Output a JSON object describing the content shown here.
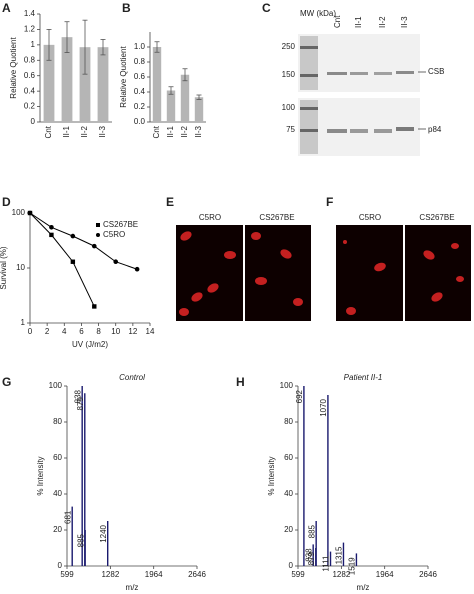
{
  "panel_labels": [
    "A",
    "B",
    "C",
    "D",
    "E",
    "F",
    "G",
    "H"
  ],
  "chart_data": [
    {
      "type": "bar",
      "ylabel": "Relative Quotient",
      "categories": [
        "Cnt",
        "II-1",
        "II-2",
        "II-3"
      ],
      "values": [
        1.0,
        1.1,
        0.97,
        0.97
      ],
      "errors": [
        0.2,
        0.2,
        0.35,
        0.1
      ],
      "color": "#b5b5b5",
      "ylim": [
        0,
        1.4
      ],
      "yticks": [
        0,
        0.2,
        0.4,
        0.6,
        0.8,
        1,
        1.2,
        1.4
      ]
    },
    {
      "type": "bar",
      "ylabel": "Relative Quotient",
      "categories": [
        "Cnt",
        "II-1",
        "II-2",
        "II-3"
      ],
      "values": [
        1.0,
        0.42,
        0.63,
        0.33
      ],
      "errors": [
        0.07,
        0.05,
        0.08,
        0.03
      ],
      "color": "#b5b5b5",
      "ylim": [
        0,
        1.2
      ],
      "yticks": [
        {
          "value": 0,
          "label": "0.0"
        },
        0.2,
        0.4,
        0.6,
        0.8,
        {
          "value": 1,
          "label": "1.0"
        }
      ]
    },
    {
      "type": "line",
      "xlabel": "UV (J/m2)",
      "ylabel": "Survival (%)",
      "x": [
        0,
        2.5,
        5,
        7.5,
        10,
        12.5
      ],
      "series": [
        {
          "name": "CS267BE",
          "color": "#000000",
          "marker": "square",
          "values": [
            100,
            40,
            13,
            2,
            null,
            null
          ]
        },
        {
          "name": "C5RO",
          "color": "#000000",
          "marker": "circle",
          "values": [
            100,
            55,
            38,
            25,
            13,
            9.5
          ]
        }
      ],
      "xlim": [
        0,
        14
      ],
      "xticks": [
        0,
        2,
        4,
        6,
        8,
        10,
        12,
        14
      ],
      "ylim": [
        1,
        100
      ],
      "yticks": [
        1,
        10,
        100
      ],
      "log_y": true
    },
    {
      "type": "spectrum",
      "title": "Control",
      "xlabel": "m/z",
      "ylabel": "% Intensity",
      "color": "#1a1a6e",
      "x": [
        681,
        838,
        879,
        885,
        1240
      ],
      "values": [
        33,
        100,
        96,
        20,
        25
      ],
      "xlim": [
        599,
        2646
      ],
      "xticks": [
        599,
        1282,
        1964,
        2646
      ],
      "ylim": [
        0,
        100
      ],
      "yticks": [
        0,
        20,
        40,
        60,
        80,
        100
      ]
    },
    {
      "type": "spectrum",
      "title": "Patient II-1",
      "xlabel": "m/z",
      "ylabel": "% Intensity",
      "color": "#1a1a6e",
      "x": [
        692,
        838,
        879,
        885,
        1070,
        1111,
        1315,
        1519
      ],
      "values": [
        100,
        12,
        10,
        25,
        95,
        8,
        13,
        7
      ],
      "xlim": [
        599,
        2646
      ],
      "xticks": [
        599,
        1282,
        1964,
        2646
      ],
      "ylim": [
        0,
        100
      ],
      "yticks": [
        0,
        20,
        40,
        60,
        80,
        100
      ]
    }
  ],
  "blot": {
    "mw_label": "MW (kDa)",
    "markers": [
      250,
      150,
      100,
      75
    ],
    "lanes": [
      "Cnt",
      "II-1",
      "II-2",
      "II-3"
    ],
    "bands": [
      "CSB",
      "p84"
    ]
  },
  "micrographs": [
    [
      "C5RO",
      "CS267BE"
    ],
    [
      "C5RO",
      "CS267BE"
    ]
  ]
}
